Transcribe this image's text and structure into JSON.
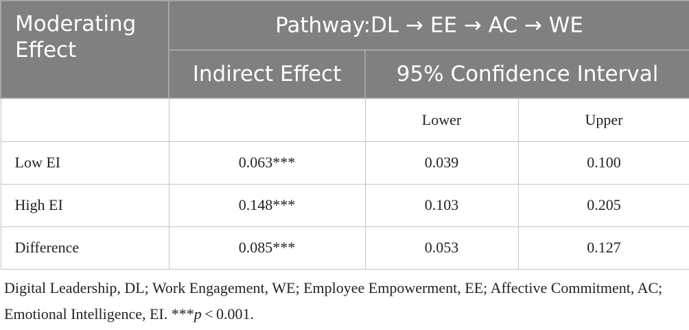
{
  "header": {
    "row_header": "Moderating Effect",
    "title": "Pathway:DL → EE → AC → WE",
    "indirect": "Indirect Effect",
    "ci": "95% Confidence Interval"
  },
  "subheader": {
    "lower": "Lower",
    "upper": "Upper"
  },
  "table": {
    "rows": [
      [
        "Low EI",
        "0.063***",
        "0.039",
        "0.100"
      ],
      [
        "High EI",
        "0.148***",
        "0.103",
        "0.205"
      ],
      [
        "Difference",
        "0.085***",
        "0.053",
        "0.127"
      ]
    ]
  },
  "note": {
    "text": "Digital Leadership, DL; Work Engagement, WE; Employee Empowerment, EE; Affective Commitment, AC; Emotional Intelligence, EI. ***",
    "italic": "p",
    "tail": " < 0.001."
  }
}
